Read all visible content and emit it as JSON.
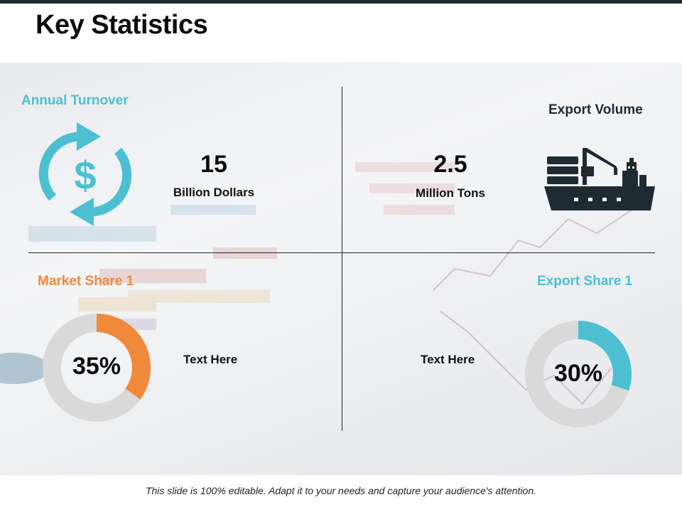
{
  "title": "Key Statistics",
  "quadrants": {
    "turnover": {
      "label": "Annual Turnover",
      "value": "15",
      "unit": "Billion Dollars",
      "icon": "dollar-cycle-icon",
      "color": "#4cc0d1"
    },
    "export_volume": {
      "label": "Export Volume",
      "value": "2.5",
      "unit": "Million Tons",
      "icon": "cargo-ship-icon",
      "color": "#1f2b33"
    },
    "market_share": {
      "label": "Market Share 1",
      "percent_label": "35%",
      "fraction": 0.35,
      "text": "Text Here",
      "color": "#f0893a",
      "track_color": "#d9d9d9"
    },
    "export_share": {
      "label": "Export Share 1",
      "percent_label": "30%",
      "fraction": 0.3,
      "text": "Text Here",
      "color": "#4cc0d1",
      "track_color": "#d9d9d9"
    }
  },
  "footer": "This slide is 100% editable.  Adapt it to your needs and capture your audience's attention."
}
